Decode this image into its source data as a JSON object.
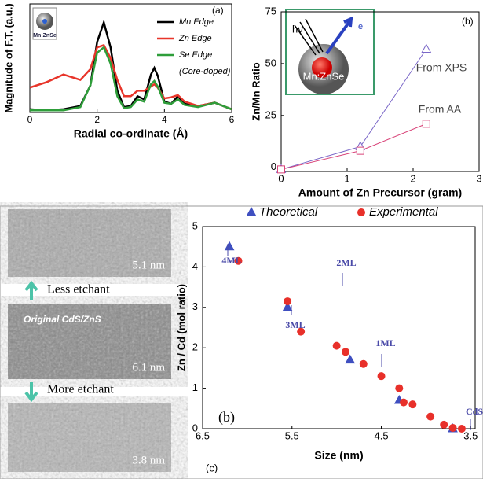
{
  "chart_data": [
    {
      "type": "line",
      "panel_label": "(a)",
      "x_label": "Radial co-ordinate (Å)",
      "y_label": "Magnitude of F.T. (a.u.)",
      "inset_label": "Mn:ZnSe",
      "note": "(Core-doped)",
      "xlim": [
        0,
        6
      ],
      "xticks": [
        0,
        2,
        4,
        6
      ],
      "ylim": [
        0,
        10
      ],
      "x": [
        0,
        0.5,
        1,
        1.5,
        1.8,
        2.0,
        2.2,
        2.4,
        2.6,
        2.8,
        3.0,
        3.2,
        3.4,
        3.6,
        3.7,
        3.8,
        4.0,
        4.2,
        4.4,
        4.6,
        5.0,
        5.5,
        6.0
      ],
      "series": [
        {
          "name": "Mn Edge",
          "color": "#000000",
          "values": [
            0.3,
            0.2,
            0.3,
            0.6,
            2.5,
            6.5,
            8.3,
            6.0,
            2.0,
            0.5,
            0.6,
            1.5,
            1.2,
            3.5,
            4.1,
            3.4,
            1.0,
            0.8,
            1.5,
            0.8,
            0.6,
            0.9,
            0.3
          ]
        },
        {
          "name": "Zn Edge",
          "color": "#e8352a",
          "values": [
            2.3,
            2.8,
            3.5,
            3.0,
            4.0,
            6.0,
            6.2,
            5.0,
            3.0,
            1.5,
            1.5,
            2.0,
            2.0,
            2.4,
            2.6,
            2.3,
            1.3,
            1.4,
            1.6,
            1.0,
            0.6,
            0.9,
            0.3
          ]
        },
        {
          "name": "Se Edge",
          "color": "#2e9e3a",
          "values": [
            0.2,
            0.2,
            0.2,
            0.5,
            2.5,
            5.5,
            6.0,
            4.5,
            1.5,
            0.4,
            0.5,
            1.2,
            1.0,
            2.6,
            2.9,
            2.4,
            0.9,
            0.8,
            1.2,
            0.7,
            0.5,
            0.9,
            0.3
          ]
        }
      ]
    },
    {
      "type": "line",
      "panel_label": "(b)",
      "x_label": "Amount of Zn Precursor (gram)",
      "y_label": "Zn/Mn Ratio",
      "inset_texts": [
        "hν",
        "e",
        "Mn:ZnSe"
      ],
      "xlim": [
        0,
        3
      ],
      "xticks": [
        0,
        1,
        2,
        3
      ],
      "ylim": [
        -2,
        75
      ],
      "yticks": [
        0,
        25,
        50,
        75
      ],
      "x": [
        0,
        1.2,
        2.2
      ],
      "series": [
        {
          "name": "From XPS",
          "color": "#7b68c8",
          "marker": "triangle",
          "values": [
            -1,
            10,
            57
          ]
        },
        {
          "name": "From AA",
          "color": "#d9457a",
          "marker": "square",
          "values": [
            -1,
            8,
            21
          ]
        }
      ]
    },
    {
      "type": "scatter",
      "panel_label": "(b)",
      "x_label": "Size (nm)",
      "y_label": "Zn / Cd (mol ratio)",
      "xlim": [
        6.5,
        3.45
      ],
      "xticks": [
        6.5,
        5.5,
        4.5,
        3.5
      ],
      "ylim": [
        0,
        5
      ],
      "yticks": [
        0,
        1,
        2,
        3,
        4,
        5
      ],
      "annotations": [
        "4ML",
        "3ML",
        "2ML",
        "1ML",
        "CdS"
      ],
      "series": [
        {
          "name": "Theoretical",
          "color": "#3f4fc0",
          "marker": "triangle",
          "x": [
            6.2,
            5.55,
            4.85,
            4.3,
            3.7
          ],
          "values": [
            4.5,
            3.0,
            1.7,
            0.7,
            0
          ]
        },
        {
          "name": "Experimental",
          "color": "#e8302a",
          "marker": "circle",
          "x": [
            6.1,
            5.55,
            5.4,
            5.0,
            4.9,
            4.7,
            4.5,
            4.3,
            4.25,
            4.15,
            3.95,
            3.8,
            3.7,
            3.6
          ],
          "values": [
            4.15,
            3.15,
            2.4,
            2.05,
            1.9,
            1.6,
            1.3,
            1.0,
            0.65,
            0.6,
            0.3,
            0.1,
            0.02,
            0
          ]
        }
      ]
    }
  ],
  "tem_panel": {
    "label": "(c)",
    "sizes": [
      "5.1 nm",
      "6.1 nm",
      "3.8 nm"
    ],
    "original": "Original CdS/ZnS",
    "less": "Less etchant",
    "more": "More etchant"
  }
}
